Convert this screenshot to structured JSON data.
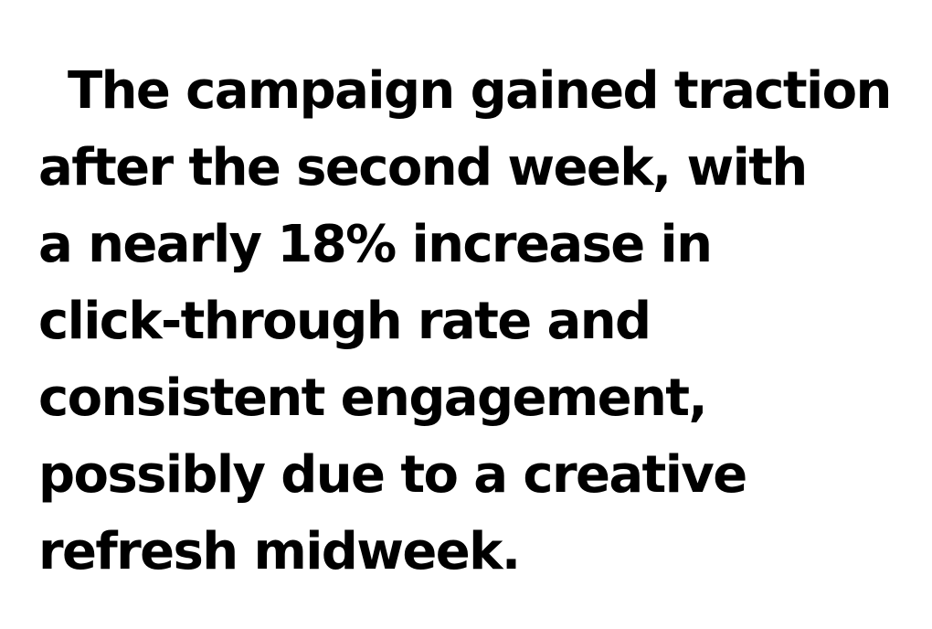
{
  "document": {
    "lines": [
      "The campaign gained traction",
      "after the second week, with",
      "a nearly 18% increase in",
      "click-through rate and",
      "consistent engagement,",
      "possibly due to a creative",
      "refresh midweek."
    ]
  }
}
